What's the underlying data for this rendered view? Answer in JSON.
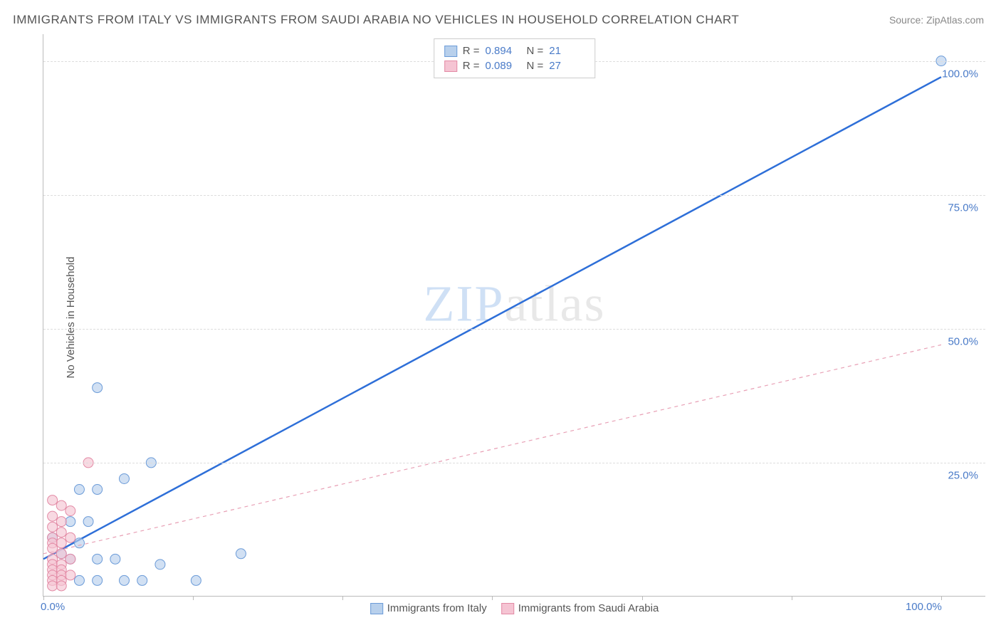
{
  "title": "IMMIGRANTS FROM ITALY VS IMMIGRANTS FROM SAUDI ARABIA NO VEHICLES IN HOUSEHOLD CORRELATION CHART",
  "source": "Source: ZipAtlas.com",
  "ylabel": "No Vehicles in Household",
  "watermark_a": "ZIP",
  "watermark_b": "atlas",
  "chart": {
    "type": "scatter",
    "xlim": [
      0,
      105
    ],
    "ylim": [
      0,
      105
    ],
    "grid_color": "#dddddd",
    "axis_color": "#bbbbbb",
    "background_color": "#ffffff",
    "tick_label_color": "#4a7bc8",
    "x_ticks": [
      0,
      16.67,
      33.33,
      50,
      66.67,
      83.33,
      100
    ],
    "x_tick_labels": {
      "0": "0.0%",
      "100": "100.0%"
    },
    "y_gridlines": [
      25,
      50,
      75,
      100
    ],
    "y_tick_labels": {
      "25": "25.0%",
      "50": "50.0%",
      "75": "75.0%",
      "100": "100.0%"
    },
    "series": [
      {
        "name": "Immigrants from Italy",
        "color_stroke": "#6b9bd8",
        "color_fill": "#b8d0ec",
        "fill_opacity": 0.65,
        "marker_radius": 7,
        "trend": {
          "x1": 0,
          "y1": 7,
          "x2": 100,
          "y2": 97,
          "color": "#2e6fd8",
          "width": 2.5,
          "dash": "none"
        },
        "R": "0.894",
        "N": "21",
        "points": [
          [
            100,
            100
          ],
          [
            6,
            39
          ],
          [
            9,
            22
          ],
          [
            12,
            25
          ],
          [
            4,
            20
          ],
          [
            6,
            20
          ],
          [
            3,
            14
          ],
          [
            5,
            14
          ],
          [
            1,
            11
          ],
          [
            4,
            10
          ],
          [
            2,
            8
          ],
          [
            3,
            7
          ],
          [
            6,
            7
          ],
          [
            8,
            7
          ],
          [
            9,
            3
          ],
          [
            6,
            3
          ],
          [
            4,
            3
          ],
          [
            11,
            3
          ],
          [
            17,
            3
          ],
          [
            22,
            8
          ],
          [
            13,
            6
          ]
        ]
      },
      {
        "name": "Immigrants from Saudi Arabia",
        "color_stroke": "#e38aa5",
        "color_fill": "#f5c4d3",
        "fill_opacity": 0.65,
        "marker_radius": 7,
        "trend": {
          "x1": 0,
          "y1": 8,
          "x2": 100,
          "y2": 47,
          "color": "#e8a0b5",
          "width": 1.2,
          "dash": "5,5"
        },
        "R": "0.089",
        "N": "27",
        "points": [
          [
            5,
            25
          ],
          [
            1,
            18
          ],
          [
            2,
            17
          ],
          [
            3,
            16
          ],
          [
            1,
            15
          ],
          [
            2,
            14
          ],
          [
            1,
            13
          ],
          [
            2,
            12
          ],
          [
            1,
            11
          ],
          [
            3,
            11
          ],
          [
            1,
            10
          ],
          [
            2,
            10
          ],
          [
            1,
            9
          ],
          [
            2,
            8
          ],
          [
            1,
            7
          ],
          [
            3,
            7
          ],
          [
            1,
            6
          ],
          [
            2,
            6
          ],
          [
            1,
            5
          ],
          [
            2,
            5
          ],
          [
            1,
            4
          ],
          [
            2,
            4
          ],
          [
            3,
            4
          ],
          [
            1,
            3
          ],
          [
            2,
            3
          ],
          [
            1,
            2
          ],
          [
            2,
            2
          ]
        ]
      }
    ],
    "legend_bottom": [
      {
        "label": "Immigrants from Italy",
        "fill": "#b8d0ec",
        "stroke": "#6b9bd8"
      },
      {
        "label": "Immigrants from Saudi Arabia",
        "fill": "#f5c4d3",
        "stroke": "#e38aa5"
      }
    ]
  }
}
